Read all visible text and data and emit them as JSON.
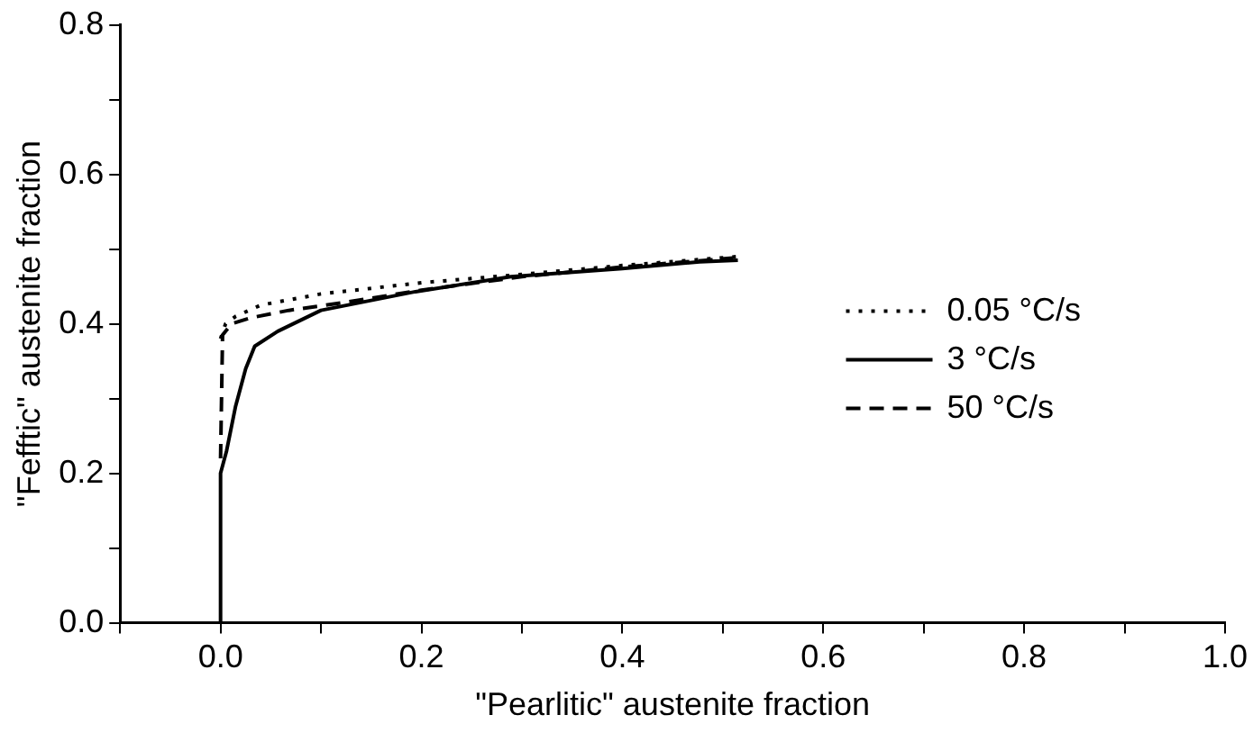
{
  "chart_data": {
    "type": "line",
    "xlabel": "\"Pearlitic\" austenite fraction",
    "ylabel": "\"Fefftic\" austenite fraction",
    "xlim": [
      -0.1,
      1.0
    ],
    "ylim": [
      0,
      0.8
    ],
    "xticks": [
      {
        "value": -0.1,
        "label": null
      },
      {
        "value": 0,
        "label": "0.0"
      },
      {
        "value": 0.1,
        "label": null
      },
      {
        "value": 0.2,
        "label": "0.2"
      },
      {
        "value": 0.3,
        "label": null
      },
      {
        "value": 0.4,
        "label": "0.4"
      },
      {
        "value": 0.5,
        "label": null
      },
      {
        "value": 0.6,
        "label": "0.6"
      },
      {
        "value": 0.7,
        "label": null
      },
      {
        "value": 0.8,
        "label": "0.8"
      },
      {
        "value": 0.9,
        "label": null
      },
      {
        "value": 1.0,
        "label": "1.0"
      }
    ],
    "yticks": [
      {
        "value": 0,
        "label": "0.0"
      },
      {
        "value": 0.1,
        "label": null
      },
      {
        "value": 0.2,
        "label": "0.2"
      },
      {
        "value": 0.3,
        "label": null
      },
      {
        "value": 0.4,
        "label": "0.4"
      },
      {
        "value": 0.5,
        "label": null
      },
      {
        "value": 0.6,
        "label": "0.6"
      },
      {
        "value": 0.7,
        "label": null
      },
      {
        "value": 0.8,
        "label": "0.8"
      }
    ],
    "grid": false,
    "legend": "right",
    "marker": "none",
    "series": [
      {
        "name": "0.05 °C/s",
        "color": "#000000",
        "line_style": "dotted",
        "x": [
          0,
          0.005,
          0.015,
          0.04,
          0.1,
          0.2,
          0.29,
          0.4,
          0.515
        ],
        "values": [
          0.38,
          0.4,
          0.41,
          0.425,
          0.44,
          0.455,
          0.465,
          0.478,
          0.49
        ]
      },
      {
        "name": "3 °C/s",
        "color": "#000000",
        "line_style": "solid",
        "x": [
          0,
          0,
          0.006,
          0.015,
          0.025,
          0.034,
          0.057,
          0.1,
          0.194,
          0.289,
          0.4,
          0.477,
          0.515
        ],
        "values": [
          0,
          0.2,
          0.23,
          0.29,
          0.34,
          0.37,
          0.39,
          0.418,
          0.443,
          0.463,
          0.474,
          0.483,
          0.485
        ]
      },
      {
        "name": "50 °C/s",
        "color": "#000000",
        "line_style": "dashed",
        "x": [
          0,
          0.002,
          0.011,
          0.03,
          0.068,
          0.12,
          0.2,
          0.3,
          0.4,
          0.51
        ],
        "values": [
          0.22,
          0.385,
          0.4,
          0.408,
          0.418,
          0.428,
          0.445,
          0.463,
          0.476,
          0.488
        ]
      }
    ]
  }
}
